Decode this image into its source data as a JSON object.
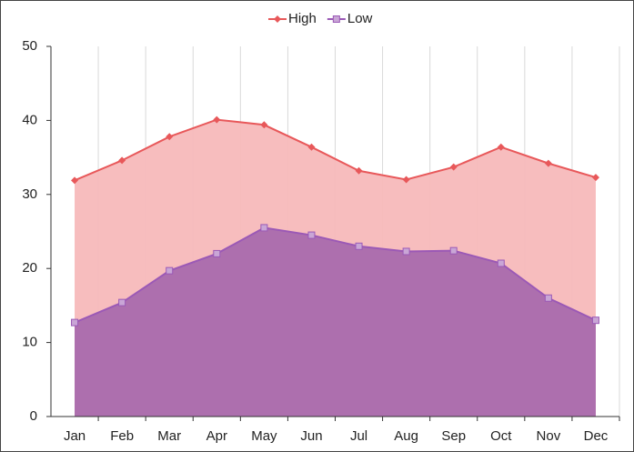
{
  "chart_data": {
    "type": "area",
    "categories": [
      "Jan",
      "Feb",
      "Mar",
      "Apr",
      "May",
      "Jun",
      "Jul",
      "Aug",
      "Sep",
      "Oct",
      "Nov",
      "Dec"
    ],
    "series": [
      {
        "name": "High",
        "color": "#e8585a",
        "fill": "#f7b9bb",
        "marker": "diamond",
        "values": [
          31.9,
          34.6,
          37.8,
          40.1,
          39.4,
          36.4,
          33.2,
          32.0,
          33.7,
          36.4,
          34.2,
          32.3
        ]
      },
      {
        "name": "Low",
        "color": "#9b59b6",
        "fill": "#a96aad",
        "marker": "square",
        "values": [
          12.7,
          15.4,
          19.7,
          22.0,
          25.5,
          24.5,
          23.0,
          22.3,
          22.4,
          20.7,
          16.0,
          13.0
        ]
      }
    ],
    "ylim": [
      0,
      50
    ],
    "yticks": [
      0,
      10,
      20,
      30,
      40,
      50
    ],
    "vertical_grid": true,
    "legend": "top"
  }
}
